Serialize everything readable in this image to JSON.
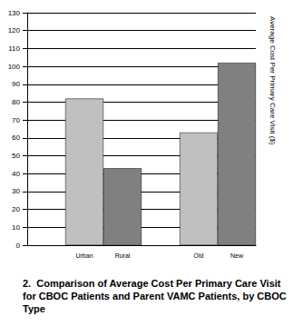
{
  "chart_data": {
    "type": "bar",
    "title": "2.  Comparison of Average Cost Per Primary Care Visit for CBOC Patients and Parent VAMC Patients, by CBOC Type",
    "y_label": "Average Cost Per Primary Care Visit ($)",
    "categories": [
      null,
      "Urban",
      "Rural",
      null,
      "Old",
      "New"
    ],
    "values": [
      null,
      82,
      43,
      null,
      63,
      102
    ],
    "colors": [
      null,
      "#c0c0c0",
      "#808080",
      null,
      "#c0c0c0",
      "#808080"
    ],
    "ylim": [
      0,
      130
    ],
    "yticks": [
      0,
      10,
      20,
      30,
      40,
      50,
      60,
      70,
      80,
      90,
      100,
      110,
      120,
      130
    ],
    "grid": true
  }
}
